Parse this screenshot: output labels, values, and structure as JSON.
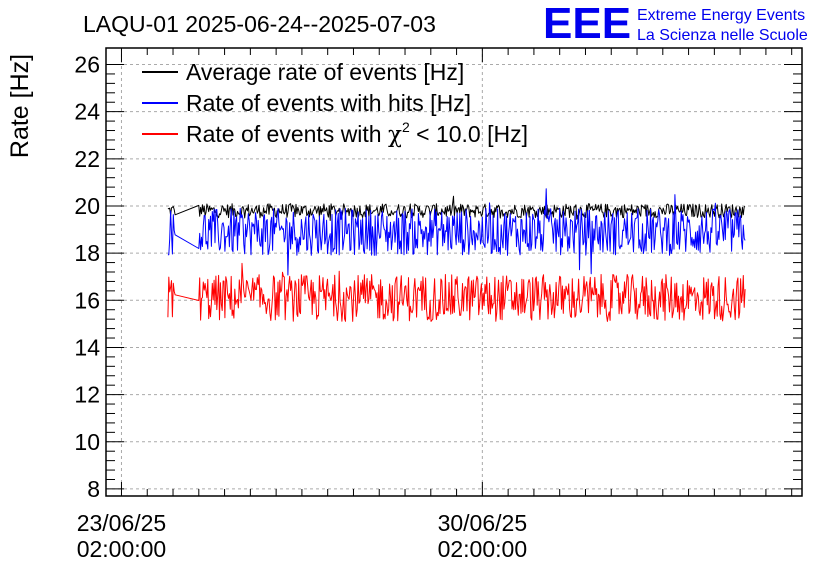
{
  "chart_data": {
    "type": "line",
    "title": "LAQU-01 2025-06-24--2025-07-03",
    "ylabel": "Rate [Hz]",
    "xlabel": "",
    "ylim": [
      7.7,
      26.7
    ],
    "y_ticks": [
      8,
      10,
      12,
      14,
      16,
      18,
      20,
      22,
      24,
      26
    ],
    "x_range_days": [
      -0.3,
      13.2
    ],
    "x_ticks": [
      {
        "day": 0,
        "date": "23/06/25",
        "time": "02:00:00"
      },
      {
        "day": 7,
        "date": "30/06/25",
        "time": "02:00:00"
      }
    ],
    "grid": true,
    "legend_position": "top-left",
    "series": [
      {
        "name": "Average rate of events [Hz]",
        "legend_prefix": "Average rate of events [Hz]",
        "legend_suffix": "",
        "color": "#000000",
        "mean": 19.8,
        "noise": 0.3,
        "segments": [
          [
            0.9,
            1.05
          ],
          [
            1.5,
            12.1
          ]
        ]
      },
      {
        "name": "Rate of events with hits [Hz]",
        "legend_prefix": "Rate of events with hits [Hz]",
        "legend_suffix": "",
        "color": "#0000ff",
        "mean": 18.9,
        "noise": 1.0,
        "segments": [
          [
            0.9,
            1.05
          ],
          [
            1.5,
            12.1
          ]
        ]
      },
      {
        "name": "Rate of events with χ2 < 10.0 [Hz]",
        "legend_prefix": "Rate of events with ",
        "legend_chi": "χ",
        "legend_sup": "2",
        "legend_suffix": " < 10.0 [Hz]",
        "color": "#ff0000",
        "mean": 16.1,
        "noise": 1.0,
        "segments": [
          [
            0.9,
            1.05
          ],
          [
            1.5,
            12.1
          ]
        ]
      }
    ]
  },
  "logo": {
    "mark": "EEE",
    "line1": "Extreme Energy Events",
    "line2": "La Scienza nelle Scuole",
    "color": "#0000ee"
  }
}
